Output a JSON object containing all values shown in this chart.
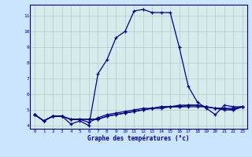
{
  "x_values": [
    0,
    1,
    2,
    3,
    4,
    5,
    6,
    7,
    8,
    9,
    10,
    11,
    12,
    13,
    14,
    15,
    16,
    17,
    18,
    19,
    20,
    21,
    22,
    23
  ],
  "line1": [
    4.7,
    4.3,
    4.6,
    4.6,
    4.1,
    4.3,
    4.0,
    7.3,
    8.2,
    9.6,
    10.0,
    11.3,
    11.4,
    11.2,
    11.2,
    11.2,
    9.0,
    6.5,
    5.5,
    5.1,
    4.7,
    5.3,
    5.2,
    5.2
  ],
  "line2": [
    4.7,
    4.3,
    4.6,
    4.6,
    4.4,
    4.4,
    4.4,
    4.4,
    4.6,
    4.7,
    4.8,
    4.9,
    5.0,
    5.1,
    5.1,
    5.2,
    5.2,
    5.2,
    5.2,
    5.2,
    5.1,
    5.1,
    5.1,
    5.2
  ],
  "line3": [
    4.7,
    4.3,
    4.6,
    4.6,
    4.4,
    4.4,
    4.4,
    4.4,
    4.6,
    4.7,
    4.8,
    4.9,
    5.0,
    5.1,
    5.2,
    5.2,
    5.3,
    5.3,
    5.3,
    5.2,
    5.1,
    5.1,
    5.0,
    5.2
  ],
  "line4": [
    4.7,
    4.3,
    4.6,
    4.6,
    4.4,
    4.4,
    4.2,
    4.5,
    4.7,
    4.8,
    4.9,
    5.0,
    5.1,
    5.1,
    5.2,
    5.2,
    5.2,
    5.3,
    5.3,
    5.2,
    5.1,
    5.0,
    5.0,
    5.2
  ],
  "fig_color": "#cce5ff",
  "plot_bg_color": "#d6ecec",
  "line_color": "#00008b",
  "grid_color": "#b0cccc",
  "xlabel": "Graphe des températures (°c)",
  "xlim": [
    -0.5,
    23.5
  ],
  "ylim": [
    3.8,
    11.7
  ],
  "yticks": [
    4,
    5,
    6,
    7,
    8,
    9,
    10,
    11
  ],
  "xticks": [
    0,
    1,
    2,
    3,
    4,
    5,
    6,
    7,
    8,
    9,
    10,
    11,
    12,
    13,
    14,
    15,
    16,
    17,
    18,
    19,
    20,
    21,
    22,
    23
  ],
  "tick_fontsize": 4.2,
  "xlabel_fontsize": 5.5
}
